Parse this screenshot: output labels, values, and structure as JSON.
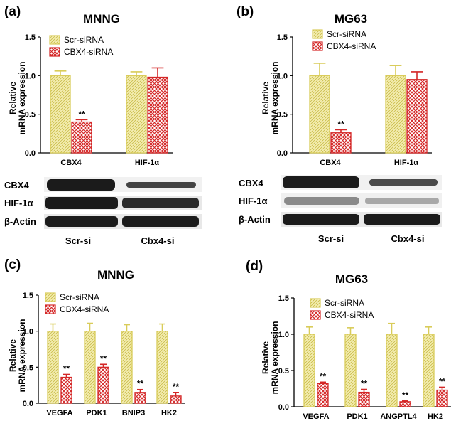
{
  "colors": {
    "scr": "#d9cc5a",
    "scr_fill": "#f4eeb2",
    "cbx": "#d42626",
    "cbx_fill": "#f6c4c4",
    "blot": "#1b1b1b"
  },
  "panels": {
    "a": {
      "letter": "(a)",
      "title": "MNNG",
      "ylabel1": "Relative",
      "ylabel2": "mRNA expression",
      "legend": [
        "Scr-siRNA",
        "CBX4-siRNA"
      ],
      "sig": "**",
      "blot_labels": [
        "CBX4",
        "HIF-1α",
        "β-Actin"
      ],
      "lanes": [
        "Scr-si",
        "Cbx4-si"
      ]
    },
    "b": {
      "letter": "(b)",
      "title": "MG63",
      "ylabel1": "Relative",
      "ylabel2": "mRNA expression",
      "legend": [
        "Scr-siRNA",
        "CBX4-siRNA"
      ],
      "sig": "**",
      "blot_labels": [
        "CBX4",
        "HIF-1α",
        "β-Actin"
      ],
      "lanes": [
        "Scr-si",
        "Cbx4-si"
      ]
    },
    "c": {
      "letter": "(c)",
      "title": "MNNG",
      "ylabel1": "Relative",
      "ylabel2": "mRNA expression",
      "legend": [
        "Scr-siRNA",
        "CBX4-siRNA"
      ],
      "sig": "**"
    },
    "d": {
      "letter": "(d)",
      "title": "MG63",
      "ylabel1": "Relative",
      "ylabel2": "mRNA expression",
      "legend": [
        "Scr-siRNA",
        "CBX4-siRNA"
      ],
      "sig": "**"
    }
  },
  "chart_data": [
    {
      "panel": "a",
      "type": "bar",
      "title": "MNNG",
      "ylabel": "Relative mRNA expression",
      "categories": [
        "CBX4",
        "HIF-1α"
      ],
      "ylim": [
        0,
        1.5
      ],
      "yticks": [
        "0.0",
        "0.5",
        "1.0",
        "1.5"
      ],
      "series": [
        {
          "name": "Scr-siRNA",
          "values": [
            1.0,
            1.0
          ],
          "errors": [
            0.06,
            0.05
          ]
        },
        {
          "name": "CBX4-siRNA",
          "values": [
            0.4,
            0.98
          ],
          "errors": [
            0.03,
            0.12
          ],
          "significance": [
            "**",
            ""
          ]
        }
      ]
    },
    {
      "panel": "b",
      "type": "bar",
      "title": "MG63",
      "ylabel": "Relative mRNA expression",
      "categories": [
        "CBX4",
        "HIF-1α"
      ],
      "ylim": [
        0,
        1.5
      ],
      "yticks": [
        "0.0",
        "0.5",
        "1.0",
        "1.5"
      ],
      "series": [
        {
          "name": "Scr-siRNA",
          "values": [
            1.0,
            1.0
          ],
          "errors": [
            0.16,
            0.13
          ]
        },
        {
          "name": "CBX4-siRNA",
          "values": [
            0.26,
            0.95
          ],
          "errors": [
            0.04,
            0.1
          ],
          "significance": [
            "**",
            ""
          ]
        }
      ]
    },
    {
      "panel": "c",
      "type": "bar",
      "title": "MNNG",
      "ylabel": "Relative mRNA expression",
      "categories": [
        "VEGFA",
        "PDK1",
        "BNIP3",
        "HK2"
      ],
      "ylim": [
        0,
        1.5
      ],
      "yticks": [
        "0.0",
        "0.5",
        "1.0",
        "1.5"
      ],
      "series": [
        {
          "name": "Scr-siRNA",
          "values": [
            1.0,
            1.0,
            1.0,
            1.0
          ],
          "errors": [
            0.1,
            0.11,
            0.09,
            0.1
          ]
        },
        {
          "name": "CBX4-siRNA",
          "values": [
            0.36,
            0.5,
            0.15,
            0.1
          ],
          "errors": [
            0.04,
            0.04,
            0.04,
            0.05
          ],
          "significance": [
            "**",
            "**",
            "**",
            "**"
          ]
        }
      ]
    },
    {
      "panel": "d",
      "type": "bar",
      "title": "MG63",
      "ylabel": "Relative mRNA expression",
      "categories": [
        "VEGFA",
        "PDK1",
        "ANGPTL4",
        "HK2"
      ],
      "ylim": [
        0,
        1.5
      ],
      "yticks": [
        "0.0",
        "0.5",
        "1.0",
        "1.5"
      ],
      "series": [
        {
          "name": "Scr-siRNA",
          "values": [
            1.0,
            1.0,
            1.0,
            1.0
          ],
          "errors": [
            0.1,
            0.09,
            0.15,
            0.1
          ]
        },
        {
          "name": "CBX4-siRNA",
          "values": [
            0.32,
            0.2,
            0.07,
            0.23
          ],
          "errors": [
            0.02,
            0.04,
            0.01,
            0.04
          ],
          "significance": [
            "**",
            "**",
            "**",
            "**"
          ]
        }
      ]
    }
  ]
}
